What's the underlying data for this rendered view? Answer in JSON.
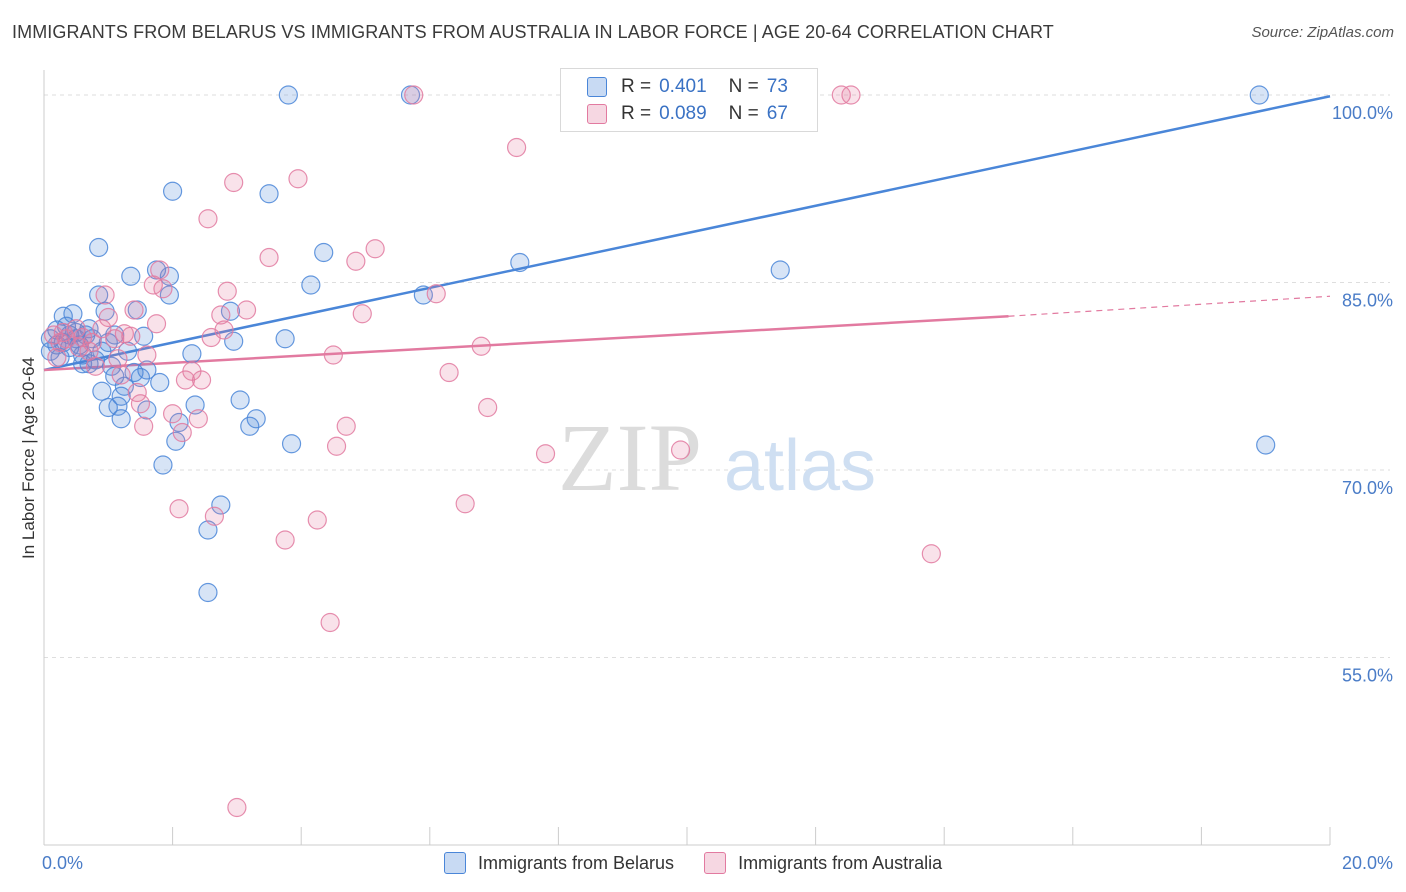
{
  "header": {
    "title": "IMMIGRANTS FROM BELARUS VS IMMIGRANTS FROM AUSTRALIA IN LABOR FORCE | AGE 20-64 CORRELATION CHART",
    "source": "Source: ZipAtlas.com"
  },
  "watermark": {
    "zip": "ZIP",
    "atlas": "atlas"
  },
  "legend": {
    "r_label": "R =",
    "n_label": "N =",
    "belarus": {
      "r": "0.401",
      "n": "73"
    },
    "australia": {
      "r": "0.089",
      "n": "67"
    }
  },
  "bottom_legend": {
    "belarus": "Immigrants from Belarus",
    "australia": "Immigrants from Australia"
  },
  "chart_data": {
    "type": "scatter",
    "title": "IMMIGRANTS FROM BELARUS VS IMMIGRANTS FROM AUSTRALIA IN LABOR FORCE | AGE 20-64 CORRELATION CHART",
    "xlabel": "",
    "ylabel": "In Labor Force | Age 20-64",
    "xlim": [
      0,
      20
    ],
    "ylim": [
      40,
      102
    ],
    "x_ticks": [
      "0.0%",
      "20.0%"
    ],
    "y_ticks": [
      {
        "value": 100,
        "label": "100.0%"
      },
      {
        "value": 85,
        "label": "85.0%"
      },
      {
        "value": 70,
        "label": "70.0%"
      },
      {
        "value": 55,
        "label": "55.0%"
      }
    ],
    "grid": true,
    "legend_placement": "top-center",
    "colors": {
      "belarus": "#4a86d8",
      "australia": "#e27aa0",
      "tick_text": "#4a7cc7"
    },
    "series": [
      {
        "name": "Immigrants from Belarus",
        "color": "#4a86d8",
        "r": 0.401,
        "n": 73,
        "trend": [
          [
            0,
            78.0
          ],
          [
            20,
            99.9
          ]
        ],
        "points": [
          [
            0.1,
            80.5
          ],
          [
            0.1,
            79.5
          ],
          [
            0.2,
            81.2
          ],
          [
            0.2,
            80.0
          ],
          [
            0.25,
            79.0
          ],
          [
            0.3,
            82.3
          ],
          [
            0.3,
            80.2
          ],
          [
            0.35,
            81.5
          ],
          [
            0.4,
            80.8
          ],
          [
            0.4,
            79.8
          ],
          [
            0.45,
            82.5
          ],
          [
            0.5,
            81.0
          ],
          [
            0.5,
            80.5
          ],
          [
            0.55,
            80.0
          ],
          [
            0.6,
            79.2
          ],
          [
            0.6,
            78.5
          ],
          [
            0.65,
            80.8
          ],
          [
            0.7,
            81.3
          ],
          [
            0.7,
            78.5
          ],
          [
            0.75,
            80.5
          ],
          [
            0.8,
            78.8
          ],
          [
            0.85,
            87.8
          ],
          [
            0.85,
            84.0
          ],
          [
            0.9,
            79.5
          ],
          [
            0.9,
            76.3
          ],
          [
            0.95,
            82.7
          ],
          [
            1.0,
            75.0
          ],
          [
            1.0,
            80.2
          ],
          [
            1.05,
            78.3
          ],
          [
            1.1,
            77.5
          ],
          [
            1.1,
            80.8
          ],
          [
            1.15,
            75.1
          ],
          [
            1.2,
            75.9
          ],
          [
            1.2,
            74.1
          ],
          [
            1.25,
            76.7
          ],
          [
            1.3,
            79.5
          ],
          [
            1.35,
            85.5
          ],
          [
            1.4,
            77.8
          ],
          [
            1.45,
            82.8
          ],
          [
            1.5,
            77.4
          ],
          [
            1.55,
            80.7
          ],
          [
            1.6,
            78.0
          ],
          [
            1.6,
            74.8
          ],
          [
            1.75,
            86.0
          ],
          [
            1.8,
            77.0
          ],
          [
            1.85,
            70.4
          ],
          [
            1.95,
            84.0
          ],
          [
            1.95,
            85.5
          ],
          [
            2.0,
            92.3
          ],
          [
            2.05,
            72.3
          ],
          [
            2.1,
            73.8
          ],
          [
            2.3,
            79.3
          ],
          [
            2.35,
            75.2
          ],
          [
            2.55,
            65.2
          ],
          [
            2.55,
            60.2
          ],
          [
            2.75,
            67.2
          ],
          [
            2.9,
            82.7
          ],
          [
            2.95,
            80.3
          ],
          [
            3.05,
            75.6
          ],
          [
            3.2,
            73.5
          ],
          [
            3.3,
            74.1
          ],
          [
            3.5,
            92.1
          ],
          [
            3.75,
            80.5
          ],
          [
            3.8,
            100.0
          ],
          [
            3.85,
            72.1
          ],
          [
            4.15,
            84.8
          ],
          [
            4.35,
            87.4
          ],
          [
            5.7,
            100.0
          ],
          [
            5.9,
            84.0
          ],
          [
            7.4,
            86.6
          ],
          [
            11.45,
            86.0
          ],
          [
            18.9,
            100.0
          ],
          [
            19.0,
            72.0
          ]
        ]
      },
      {
        "name": "Immigrants from Australia",
        "color": "#e27aa0",
        "r": 0.089,
        "n": 67,
        "trend": [
          [
            0,
            78.0
          ],
          [
            15,
            82.3
          ]
        ],
        "trend_extension": [
          [
            15,
            82.3
          ],
          [
            20,
            83.9
          ]
        ],
        "points": [
          [
            0.15,
            80.8
          ],
          [
            0.2,
            79.0
          ],
          [
            0.25,
            80.2
          ],
          [
            0.3,
            81.0
          ],
          [
            0.35,
            80.5
          ],
          [
            0.5,
            81.3
          ],
          [
            0.55,
            79.8
          ],
          [
            0.6,
            80.6
          ],
          [
            0.7,
            79.5
          ],
          [
            0.75,
            80.2
          ],
          [
            0.8,
            78.3
          ],
          [
            0.9,
            81.3
          ],
          [
            0.95,
            84.0
          ],
          [
            1.0,
            82.2
          ],
          [
            1.1,
            80.5
          ],
          [
            1.15,
            78.9
          ],
          [
            1.2,
            77.6
          ],
          [
            1.25,
            80.9
          ],
          [
            1.35,
            80.7
          ],
          [
            1.4,
            82.8
          ],
          [
            1.45,
            76.2
          ],
          [
            1.5,
            75.3
          ],
          [
            1.55,
            73.5
          ],
          [
            1.6,
            79.2
          ],
          [
            1.7,
            84.8
          ],
          [
            1.75,
            81.7
          ],
          [
            1.8,
            86.0
          ],
          [
            1.85,
            84.5
          ],
          [
            2.0,
            74.5
          ],
          [
            2.1,
            66.9
          ],
          [
            2.15,
            73.0
          ],
          [
            2.2,
            77.2
          ],
          [
            2.3,
            77.9
          ],
          [
            2.4,
            74.1
          ],
          [
            2.45,
            77.2
          ],
          [
            2.55,
            90.1
          ],
          [
            2.6,
            80.6
          ],
          [
            2.65,
            66.3
          ],
          [
            2.75,
            82.4
          ],
          [
            2.8,
            81.2
          ],
          [
            2.85,
            84.3
          ],
          [
            2.95,
            93.0
          ],
          [
            3.0,
            43.0
          ],
          [
            3.15,
            82.8
          ],
          [
            3.5,
            87.0
          ],
          [
            3.75,
            64.4
          ],
          [
            3.95,
            93.3
          ],
          [
            4.25,
            66.0
          ],
          [
            4.45,
            57.8
          ],
          [
            4.55,
            71.9
          ],
          [
            4.5,
            79.2
          ],
          [
            4.7,
            73.5
          ],
          [
            4.85,
            86.7
          ],
          [
            4.95,
            82.5
          ],
          [
            5.15,
            87.7
          ],
          [
            5.75,
            100.0
          ],
          [
            6.1,
            84.1
          ],
          [
            6.3,
            77.8
          ],
          [
            6.55,
            67.3
          ],
          [
            6.8,
            79.9
          ],
          [
            6.9,
            75.0
          ],
          [
            7.35,
            95.8
          ],
          [
            7.8,
            71.3
          ],
          [
            9.9,
            71.6
          ],
          [
            12.4,
            100.0
          ],
          [
            12.55,
            100.0
          ],
          [
            13.8,
            63.3
          ]
        ]
      }
    ]
  }
}
